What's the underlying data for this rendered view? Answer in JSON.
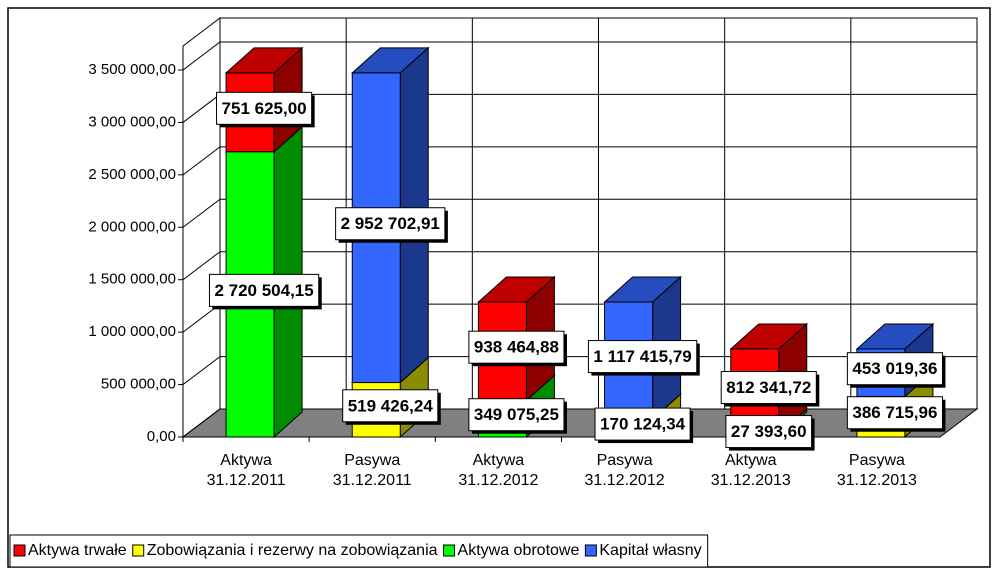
{
  "chart_data": {
    "type": "bar3d_stacked",
    "categories": [
      "Aktywa 31.12.2011",
      "Pasywa 31.12.2011",
      "Aktywa 31.12.2012",
      "Pasywa 31.12.2012",
      "Aktywa 31.12.2013",
      "Pasywa 31.12.2013"
    ],
    "series": [
      {
        "name": "Aktywa trwałe",
        "color": "#ff0000",
        "values": [
          751625.0,
          null,
          938464.88,
          null,
          812341.72,
          null
        ],
        "value_labels": [
          "751 625,00",
          null,
          "938 464,88",
          null,
          "812 341,72",
          null
        ]
      },
      {
        "name": "Zobowiązania i rezerwy na zobowiązania",
        "color": "#ffff00",
        "values": [
          null,
          519426.24,
          null,
          170124.34,
          null,
          386715.96
        ],
        "value_labels": [
          null,
          "519 426,24",
          null,
          "170 124,34",
          null,
          "386 715,96"
        ]
      },
      {
        "name": "Aktywa obrotowe",
        "color": "#00ff00",
        "values": [
          2720504.15,
          null,
          349075.25,
          null,
          27393.6,
          null
        ],
        "value_labels": [
          "2 720 504,15",
          null,
          "349 075,25",
          null,
          "27 393,60",
          null
        ]
      },
      {
        "name": "Kapitał własny",
        "color": "#3366ff",
        "values": [
          null,
          2952702.91,
          null,
          1117415.79,
          null,
          453019.36
        ],
        "value_labels": [
          null,
          "2 952 702,91",
          null,
          "1 117 415,79",
          null,
          "453 019,36"
        ]
      }
    ],
    "ylim": [
      0,
      3500000
    ],
    "yticks": [
      {
        "value": 0,
        "label": "0,00"
      },
      {
        "value": 500000,
        "label": "500 000,00"
      },
      {
        "value": 1000000,
        "label": "1 000 000,00"
      },
      {
        "value": 1500000,
        "label": "1 500 000,00"
      },
      {
        "value": 2000000,
        "label": "2 000 000,00"
      },
      {
        "value": 2500000,
        "label": "2 500 000,00"
      },
      {
        "value": 3000000,
        "label": "3 000 000,00"
      },
      {
        "value": 3500000,
        "label": "3 500 000,00"
      }
    ],
    "grid": true,
    "legend": "bottom"
  }
}
